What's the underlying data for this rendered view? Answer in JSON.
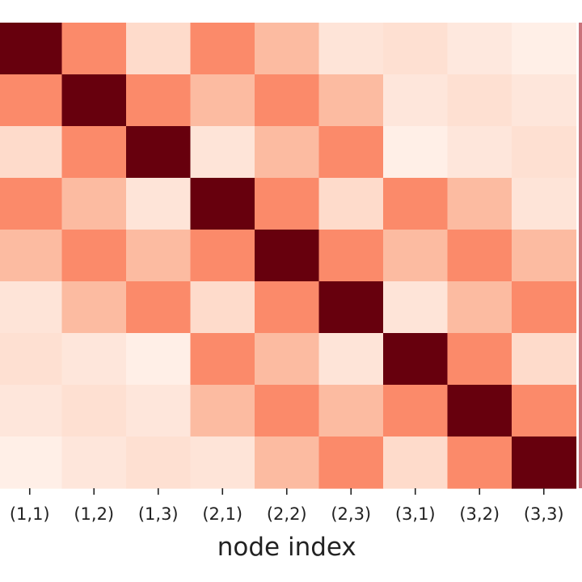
{
  "chart_data": {
    "type": "heatmap",
    "xlabel": "node index",
    "ylabel": "",
    "title": "",
    "categories": [
      "(1,1)",
      "(1,2)",
      "(1,3)",
      "(2,1)",
      "(2,2)",
      "(2,3)",
      "(3,1)",
      "(3,2)",
      "(3,3)"
    ],
    "values": [
      [
        1.0,
        0.45,
        0.12,
        0.45,
        0.25,
        0.08,
        0.1,
        0.06,
        0.03
      ],
      [
        0.45,
        1.0,
        0.45,
        0.25,
        0.45,
        0.25,
        0.07,
        0.1,
        0.07
      ],
      [
        0.12,
        0.45,
        1.0,
        0.08,
        0.25,
        0.45,
        0.03,
        0.07,
        0.1
      ],
      [
        0.45,
        0.25,
        0.08,
        1.0,
        0.45,
        0.12,
        0.45,
        0.25,
        0.08
      ],
      [
        0.25,
        0.45,
        0.25,
        0.45,
        1.0,
        0.45,
        0.25,
        0.45,
        0.25
      ],
      [
        0.08,
        0.25,
        0.45,
        0.12,
        0.45,
        1.0,
        0.08,
        0.25,
        0.45
      ],
      [
        0.1,
        0.07,
        0.03,
        0.45,
        0.25,
        0.08,
        1.0,
        0.45,
        0.12
      ],
      [
        0.07,
        0.1,
        0.07,
        0.25,
        0.45,
        0.25,
        0.45,
        1.0,
        0.45
      ],
      [
        0.03,
        0.07,
        0.1,
        0.08,
        0.25,
        0.45,
        0.12,
        0.45,
        1.0
      ]
    ],
    "colormap": "Reds",
    "colors": {
      "low": "#fff5f0",
      "mid": "#fb8a6a",
      "high": "#67000d"
    },
    "colorbar": "right"
  }
}
